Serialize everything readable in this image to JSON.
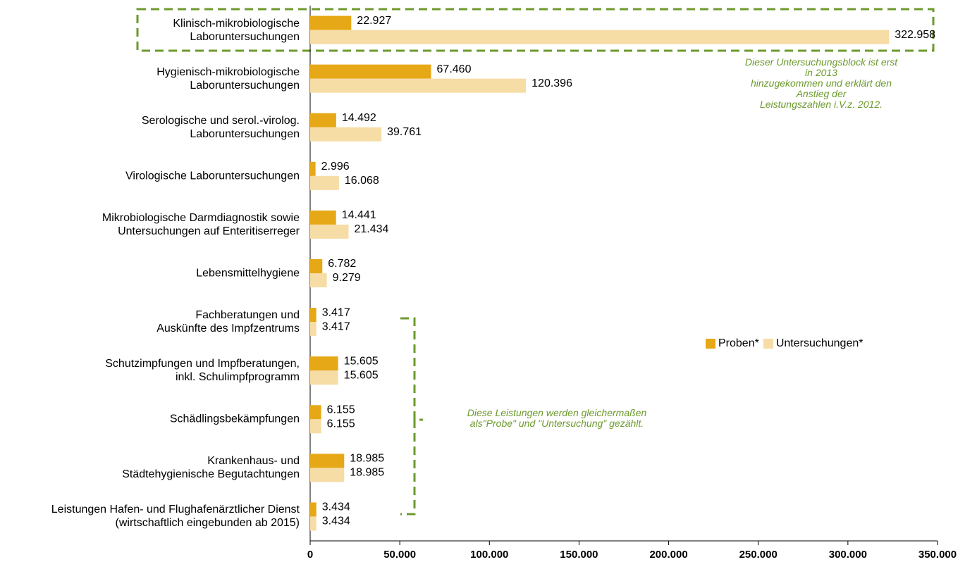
{
  "chart_data": {
    "type": "hbar",
    "categories": [
      "Klinisch-mikrobiologische\nLaboruntersuchungen",
      "Hygienisch-mikrobiologische\nLaboruntersuchungen",
      "Serologische und serol.-virolog.\nLaboruntersuchungen",
      "Virologische Laboruntersuchungen",
      "Mikrobiologische Darmdiagnostik sowie\nUntersuchungen auf Enteritiserreger",
      "Lebensmittelhygiene",
      "Fachberatungen und\nAuskünfte des Impfzentrums",
      "Schutzimpfungen und Impfberatungen,\ninkl. Schulimpfprogramm",
      "Schädlingsbekämpfungen",
      "Krankenhaus- und\nStädtehygienische Begutachtungen",
      "Leistungen Hafen- und Flughafenärztlicher Dienst\n(wirtschaftlich eingebunden ab 2015)"
    ],
    "series": [
      {
        "name": "Proben*",
        "color": "#e6a817",
        "values": [
          22927,
          67460,
          14492,
          2996,
          14441,
          6782,
          3417,
          15605,
          6155,
          18985,
          3434
        ],
        "value_labels": [
          "22.927",
          "67.460",
          "14.492",
          "2.996",
          "14.441",
          "6.782",
          "3.417",
          "15.605",
          "6.155",
          "18.985",
          "3.434"
        ]
      },
      {
        "name": "Untersuchungen*",
        "color": "#f6dca5",
        "values": [
          322958,
          120396,
          39761,
          16068,
          21434,
          9279,
          3417,
          15605,
          6155,
          18985,
          3434
        ],
        "value_labels": [
          "322.958",
          "120.396",
          "39.761",
          "16.068",
          "21.434",
          "9.279",
          "3.417",
          "15.605",
          "6.155",
          "18.985",
          "3.434"
        ]
      }
    ],
    "xlim": [
      0,
      350000
    ],
    "xticks": [
      0,
      {
        "value": 50000,
        "label": "50.000"
      },
      {
        "value": 100000,
        "label": "100.000"
      },
      {
        "value": 150000,
        "label": "150.000"
      },
      {
        "value": 200000,
        "label": "200.000"
      },
      {
        "value": 250000,
        "label": "250.000"
      },
      {
        "value": 300000,
        "label": "300.000"
      },
      {
        "value": 350000,
        "label": "350.000"
      }
    ],
    "legend": "right",
    "annotations": [
      "Dieser Untersuchungsblock ist erst in 2013\nhinzugekommen und erklärt den Anstieg der\nLeistungszahlen i.V.z. 2012.",
      "Diese Leistungen werden gleichermaßen\nals\"Probe\" und \"Untersuchung\" gezählt."
    ]
  }
}
